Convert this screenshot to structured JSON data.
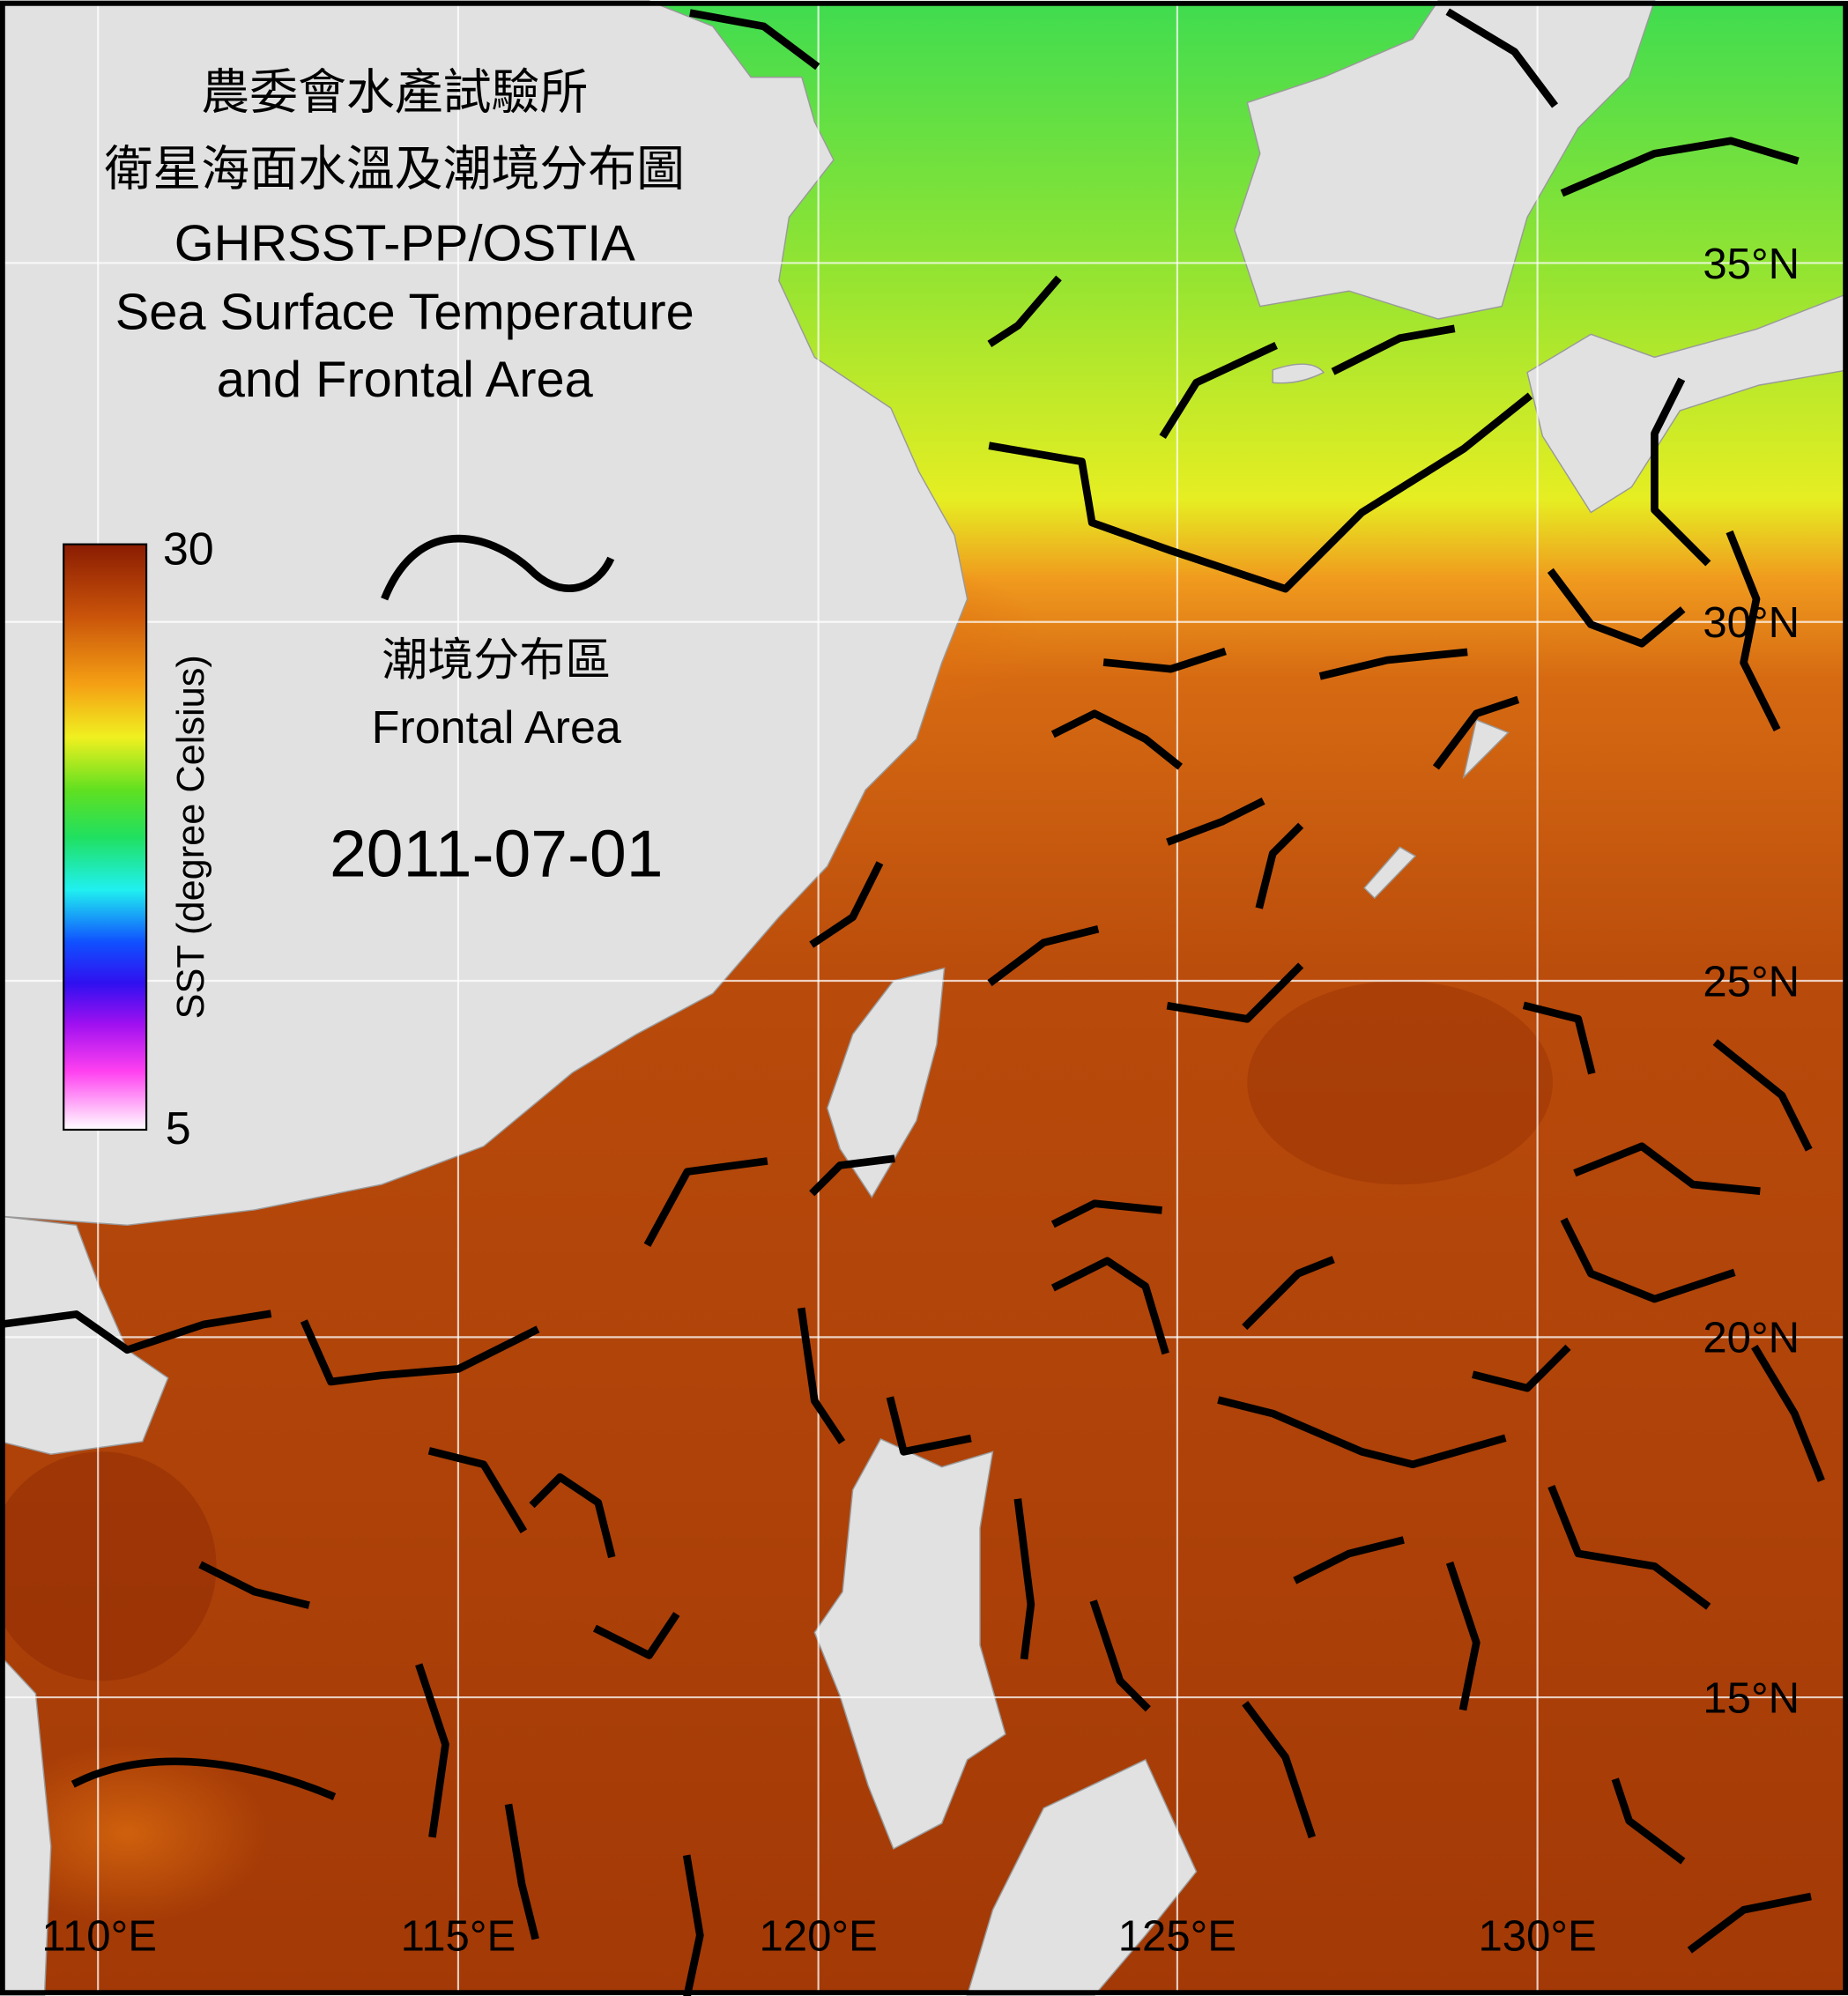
{
  "title": {
    "lines": [
      "農委會水產試驗所",
      "衛星海面水溫及潮境分布圖",
      "GHRSST-PP/OSTIA",
      "Sea Surface Temperature",
      "and Frontal Area"
    ]
  },
  "colorbar": {
    "label": "SST (degree Celsius)",
    "max": 30,
    "min": 5
  },
  "legend": {
    "label_zh": "潮境分布區",
    "label_en": "Frontal Area"
  },
  "date": "2011-07-01",
  "lat_labels": [
    "35°N",
    "30°N",
    "25°N",
    "20°N",
    "15°N"
  ],
  "lon_labels": [
    "110°E",
    "115°E",
    "120°E",
    "125°E",
    "130°E"
  ]
}
